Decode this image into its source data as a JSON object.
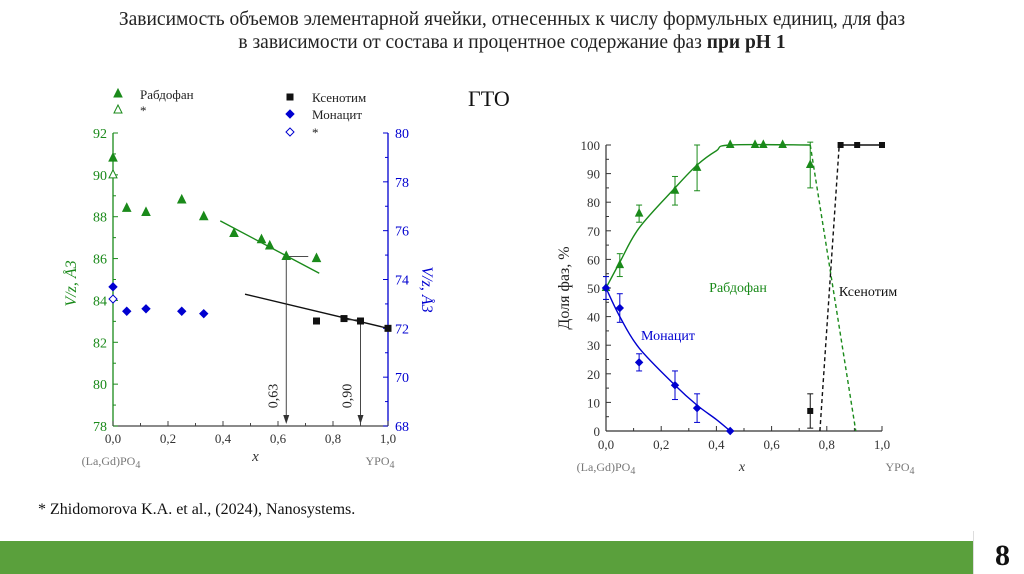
{
  "slide": {
    "title_line1": "Зависимость объемов элементарной ячейки, отнесенных к числу формульных единиц, для фаз",
    "title_line2": "в зависимости от состава и процентное содержание фаз ",
    "title_bold": "при pH 1",
    "gto_label": "ГТО",
    "reference": "* Zhidomorova K.A. et al., (2024), Nanosystems.",
    "page_number": "8"
  },
  "colors": {
    "green": "#1a8a1a",
    "blue": "#0000d0",
    "black": "#111111",
    "gray": "#777777",
    "footer": "#5aa03c"
  },
  "chart_data": [
    {
      "type": "scatter",
      "title": "",
      "xlabel": "x",
      "ylabel_left": "V/z, Å3",
      "ylabel_right": "V/z, Å3",
      "x_ticks": [
        "0,0",
        "0,2",
        "0,4",
        "0,6",
        "0,8",
        "1,0"
      ],
      "yleft_ticks": [
        "78",
        "80",
        "82",
        "84",
        "86",
        "88",
        "90",
        "92"
      ],
      "yright_ticks": [
        "68",
        "70",
        "72",
        "74",
        "76",
        "78",
        "80"
      ],
      "xlim": [
        0,
        1.0
      ],
      "ylim_left": [
        78,
        92
      ],
      "ylim_right": [
        68,
        80
      ],
      "x_end_left": "(La,Gd)PO4",
      "x_end_right": "YPO4",
      "legend": [
        {
          "name": "Рабдофан",
          "marker": "triangle-filled",
          "color": "green"
        },
        {
          "name": "*",
          "marker": "triangle-open",
          "color": "green"
        },
        {
          "name": "Ксенотим",
          "marker": "square-filled",
          "color": "black"
        },
        {
          "name": "Монацит",
          "marker": "diamond-filled",
          "color": "blue"
        },
        {
          "name": "*",
          "marker": "diamond-open",
          "color": "blue"
        }
      ],
      "series": [
        {
          "name": "Рабдофан",
          "axis": "left",
          "color": "green",
          "marker": "triangle",
          "x": [
            0,
            0.05,
            0.12,
            0.25,
            0.33,
            0.44,
            0.54,
            0.57,
            0.63,
            0.74
          ],
          "y": [
            90.8,
            88.4,
            88.2,
            88.8,
            88.0,
            87.2,
            86.9,
            86.6,
            86.1,
            86.0
          ]
        },
        {
          "name": "Рабдофан *",
          "axis": "left",
          "color": "green",
          "marker": "triangle-open",
          "x": [
            0
          ],
          "y": [
            90.0
          ]
        },
        {
          "name": "Монацит",
          "axis": "right",
          "color": "blue",
          "marker": "diamond",
          "x": [
            0,
            0.05,
            0.12,
            0.25,
            0.33
          ],
          "y": [
            73.7,
            72.7,
            72.8,
            72.7,
            72.6
          ]
        },
        {
          "name": "Монацит *",
          "axis": "right",
          "color": "blue",
          "marker": "diamond-open",
          "x": [
            0
          ],
          "y": [
            73.2
          ]
        },
        {
          "name": "Ксенотим",
          "axis": "right",
          "color": "black",
          "marker": "square",
          "x": [
            0.74,
            0.84,
            0.9,
            1.0
          ],
          "y": [
            72.3,
            72.4,
            72.3,
            72.0
          ]
        }
      ],
      "trend_lines": [
        {
          "axis": "left",
          "color": "green",
          "x": [
            0.39,
            0.75
          ],
          "y": [
            87.8,
            85.3
          ]
        },
        {
          "axis": "right",
          "color": "black",
          "x": [
            0.48,
            1.0
          ],
          "y": [
            73.4,
            72.0
          ]
        }
      ],
      "annotations": [
        {
          "text": "0,63",
          "x": 0.63
        },
        {
          "text": "0,90",
          "x": 0.9
        }
      ]
    },
    {
      "type": "scatter",
      "title": "",
      "xlabel": "x",
      "ylabel": "Доля фаз, %",
      "x_ticks": [
        "0,0",
        "0,2",
        "0,4",
        "0,6",
        "0,8",
        "1,0"
      ],
      "y_ticks": [
        "0",
        "10",
        "20",
        "30",
        "40",
        "50",
        "60",
        "70",
        "80",
        "90",
        "100"
      ],
      "xlim": [
        0,
        1.0
      ],
      "ylim": [
        0,
        100
      ],
      "x_end_left": "(La,Gd)PO4",
      "x_end_right": "YPO4",
      "series": [
        {
          "name": "Рабдофан",
          "color": "green",
          "marker": "triangle",
          "x": [
            0,
            0.05,
            0.12,
            0.25,
            0.33,
            0.45,
            0.54,
            0.57,
            0.64,
            0.74
          ],
          "y": [
            50,
            58,
            76,
            84,
            92,
            100,
            100,
            100,
            100,
            93
          ],
          "err": [
            4,
            4,
            3,
            5,
            8,
            0,
            0,
            0,
            0,
            8
          ]
        },
        {
          "name": "Монацит",
          "color": "blue",
          "marker": "diamond",
          "x": [
            0,
            0.05,
            0.12,
            0.25,
            0.33,
            0.45
          ],
          "y": [
            50,
            43,
            24,
            16,
            8,
            0
          ],
          "err": [
            4,
            5,
            3,
            5,
            5,
            0
          ]
        },
        {
          "name": "Ксенотим",
          "color": "black",
          "marker": "square",
          "x": [
            0.74,
            0.85,
            0.91,
            1.0
          ],
          "y": [
            7,
            100,
            100,
            100
          ],
          "err": [
            6,
            0,
            0,
            0
          ]
        }
      ],
      "fit_curves": [
        {
          "name": "Рабдофан fit",
          "color": "green",
          "dash": false,
          "x": [
            0,
            0.05,
            0.12,
            0.25,
            0.33,
            0.4,
            0.45,
            0.74
          ],
          "y": [
            50,
            59,
            71,
            85,
            93,
            98,
            100,
            100
          ]
        },
        {
          "name": "Рабдофан fit (dashed)",
          "color": "green",
          "dash": true,
          "x": [
            0.74,
            0.905
          ],
          "y": [
            100,
            0
          ]
        },
        {
          "name": "Монацит fit",
          "color": "blue",
          "dash": false,
          "x": [
            0,
            0.05,
            0.12,
            0.25,
            0.33,
            0.4,
            0.45
          ],
          "y": [
            50,
            40,
            29,
            16,
            9,
            4,
            0
          ]
        },
        {
          "name": "Ксенотим fit (dashed)",
          "color": "black",
          "dash": true,
          "x": [
            0.775,
            0.845
          ],
          "y": [
            0,
            100
          ]
        },
        {
          "name": "Ксенотим top",
          "color": "black",
          "dash": false,
          "x": [
            0.845,
            1.0
          ],
          "y": [
            100,
            100
          ]
        }
      ],
      "labels": [
        {
          "text": "Рабдофан",
          "color": "green"
        },
        {
          "text": "Монацит",
          "color": "blue"
        },
        {
          "text": "Ксенотим",
          "color": "black"
        }
      ]
    }
  ]
}
